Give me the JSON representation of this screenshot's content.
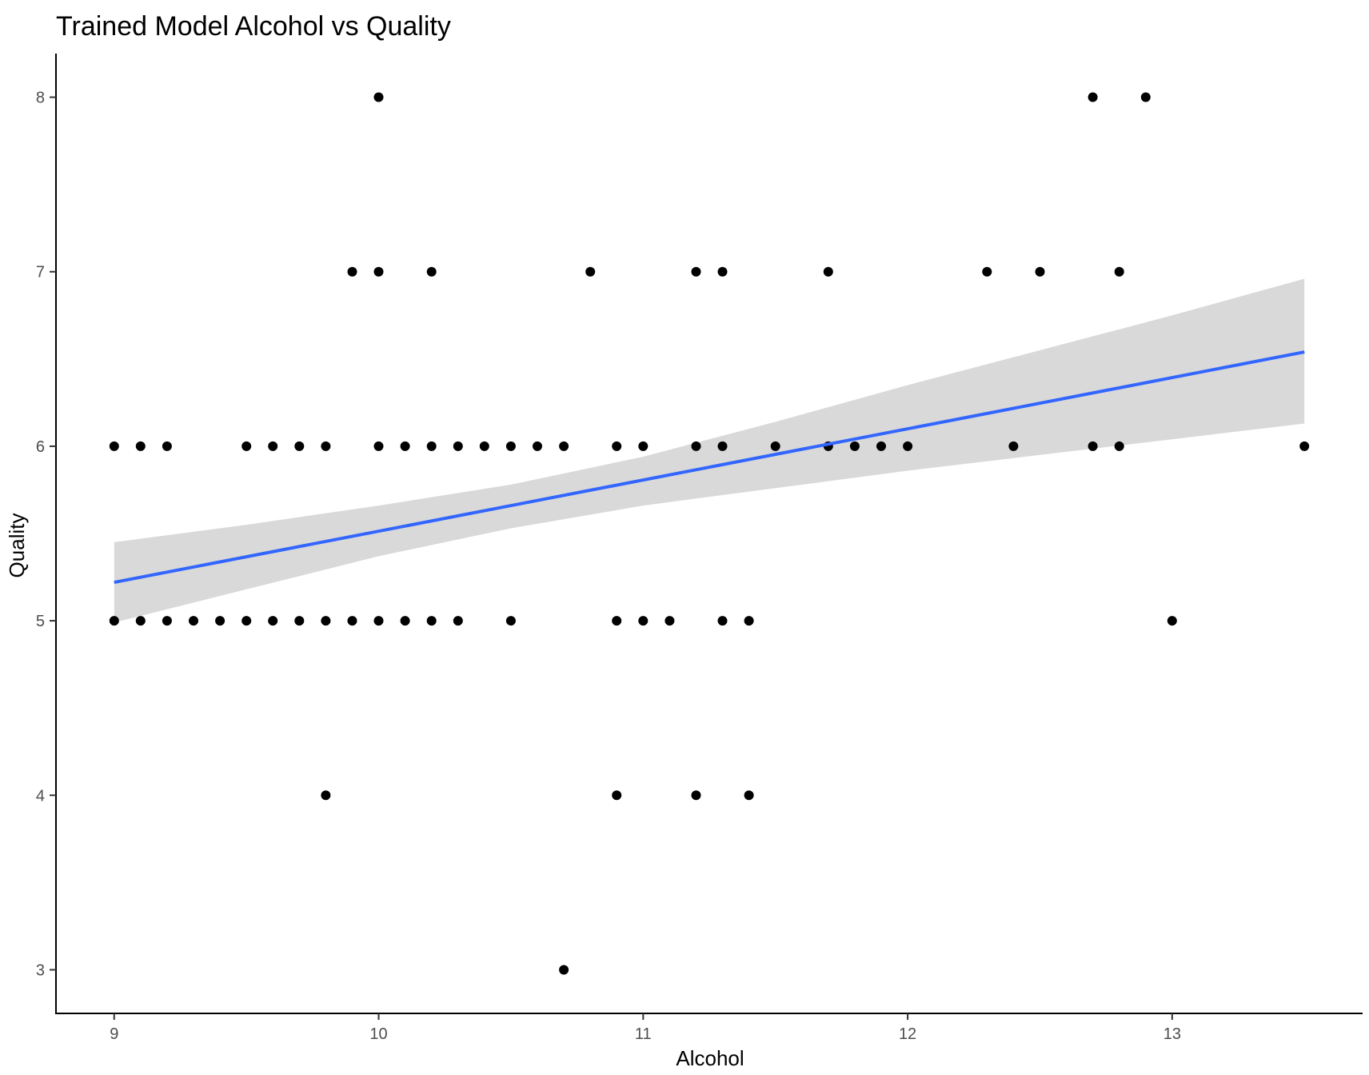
{
  "chart_data": {
    "type": "scatter",
    "title": "Trained Model Alcohol vs Quality",
    "xlabel": "Alcohol",
    "ylabel": "Quality",
    "xlim": [
      8.78,
      13.72
    ],
    "ylim": [
      2.75,
      8.25
    ],
    "xticks": [
      9,
      10,
      11,
      12,
      13
    ],
    "yticks": [
      3,
      4,
      5,
      6,
      7,
      8
    ],
    "grid": false,
    "legend": "none",
    "point_color": "#000000",
    "line_color": "#3366FF",
    "band_color": "#D9D9D9",
    "points": [
      [
        10.0,
        8
      ],
      [
        12.7,
        8
      ],
      [
        12.9,
        8
      ],
      [
        9.9,
        7
      ],
      [
        10.0,
        7
      ],
      [
        10.2,
        7
      ],
      [
        10.8,
        7
      ],
      [
        11.2,
        7
      ],
      [
        11.3,
        7
      ],
      [
        11.7,
        7
      ],
      [
        12.3,
        7
      ],
      [
        12.5,
        7
      ],
      [
        12.8,
        7
      ],
      [
        9.0,
        6
      ],
      [
        9.1,
        6
      ],
      [
        9.2,
        6
      ],
      [
        9.5,
        6
      ],
      [
        9.6,
        6
      ],
      [
        9.7,
        6
      ],
      [
        9.8,
        6
      ],
      [
        10.0,
        6
      ],
      [
        10.1,
        6
      ],
      [
        10.2,
        6
      ],
      [
        10.3,
        6
      ],
      [
        10.4,
        6
      ],
      [
        10.5,
        6
      ],
      [
        10.6,
        6
      ],
      [
        10.7,
        6
      ],
      [
        10.9,
        6
      ],
      [
        11.0,
        6
      ],
      [
        11.2,
        6
      ],
      [
        11.3,
        6
      ],
      [
        11.5,
        6
      ],
      [
        11.7,
        6
      ],
      [
        11.8,
        6
      ],
      [
        11.9,
        6
      ],
      [
        12.0,
        6
      ],
      [
        12.4,
        6
      ],
      [
        12.7,
        6
      ],
      [
        12.8,
        6
      ],
      [
        13.5,
        6
      ],
      [
        9.0,
        5
      ],
      [
        9.1,
        5
      ],
      [
        9.2,
        5
      ],
      [
        9.3,
        5
      ],
      [
        9.4,
        5
      ],
      [
        9.5,
        5
      ],
      [
        9.6,
        5
      ],
      [
        9.7,
        5
      ],
      [
        9.8,
        5
      ],
      [
        9.9,
        5
      ],
      [
        10.0,
        5
      ],
      [
        10.1,
        5
      ],
      [
        10.2,
        5
      ],
      [
        10.3,
        5
      ],
      [
        10.5,
        5
      ],
      [
        10.9,
        5
      ],
      [
        11.0,
        5
      ],
      [
        11.1,
        5
      ],
      [
        11.3,
        5
      ],
      [
        11.4,
        5
      ],
      [
        13.0,
        5
      ],
      [
        9.8,
        4
      ],
      [
        10.9,
        4
      ],
      [
        11.2,
        4
      ],
      [
        11.4,
        4
      ],
      [
        10.7,
        3
      ]
    ],
    "trend_line": {
      "x": [
        9.0,
        13.5
      ],
      "y": [
        5.22,
        6.54
      ]
    },
    "confidence_band": {
      "x": [
        9.0,
        9.5,
        10.0,
        10.5,
        11.0,
        11.5,
        12.0,
        12.5,
        13.0,
        13.5
      ],
      "upper": [
        5.45,
        5.55,
        5.66,
        5.78,
        5.94,
        6.14,
        6.35,
        6.55,
        6.75,
        6.96
      ],
      "lower": [
        4.99,
        5.18,
        5.37,
        5.53,
        5.66,
        5.76,
        5.86,
        5.95,
        6.04,
        6.13
      ]
    }
  }
}
